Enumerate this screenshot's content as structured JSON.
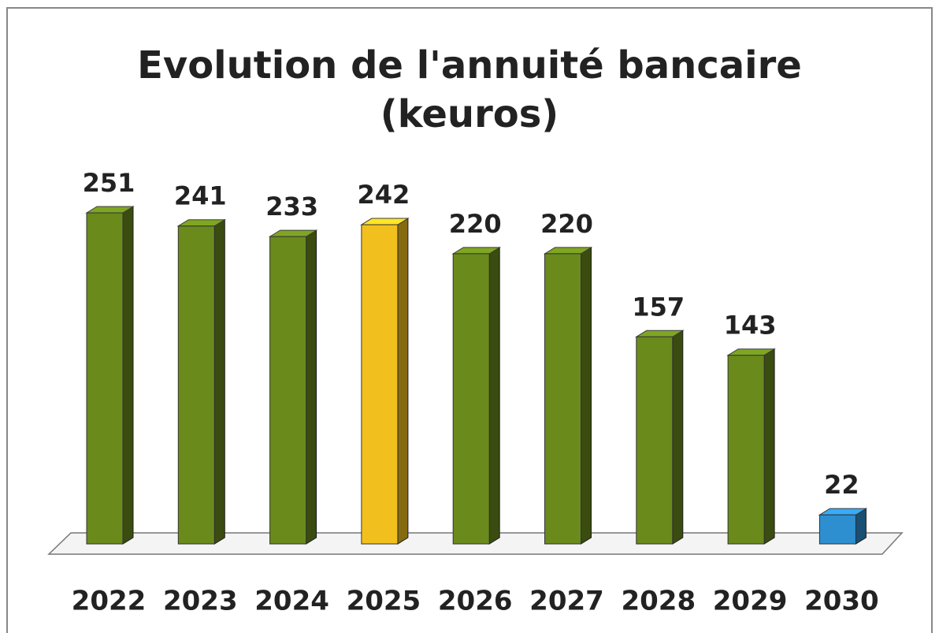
{
  "chart_data": {
    "type": "bar3d",
    "title": "Evolution de l'annuité bancaire (keuros)",
    "categories": [
      "2022",
      "2023",
      "2024",
      "2025",
      "2026",
      "2027",
      "2028",
      "2029",
      "2030"
    ],
    "values": [
      251,
      241,
      233,
      242,
      220,
      220,
      157,
      143,
      22
    ],
    "colors": [
      "#6a8a1c",
      "#6a8a1c",
      "#6a8a1c",
      "#f2c01e",
      "#6a8a1c",
      "#6a8a1c",
      "#6a8a1c",
      "#6a8a1c",
      "#2e8fd0"
    ]
  }
}
